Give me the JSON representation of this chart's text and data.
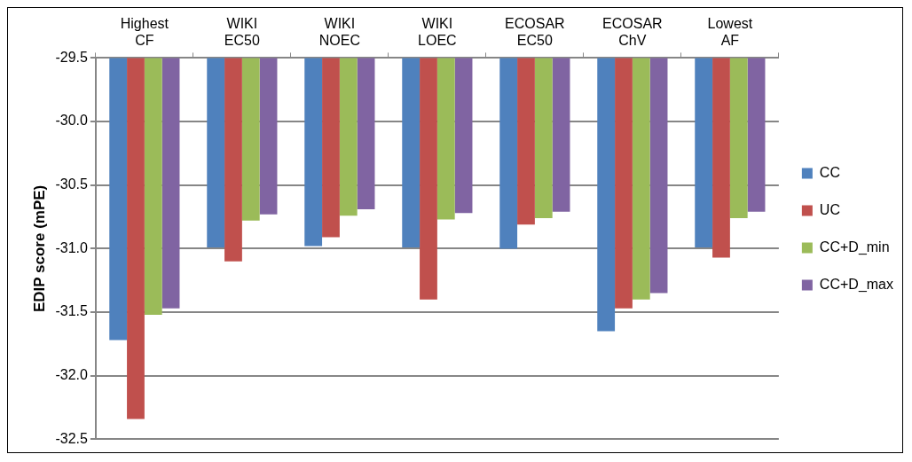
{
  "chart_data": {
    "type": "bar",
    "ylabel": "EDIP score (mPE)",
    "categories": [
      "Highest CF",
      "WIKI EC50",
      "WIKI NOEC",
      "WIKI LOEC",
      "ECOSAR EC50",
      "ECOSAR ChV",
      "Lowest AF"
    ],
    "series": [
      {
        "name": "CC",
        "color": "#4f81bd",
        "values": [
          -31.72,
          -30.99,
          -30.98,
          -30.99,
          -31.0,
          -31.65,
          -30.99
        ]
      },
      {
        "name": "UC",
        "color": "#c0504d",
        "values": [
          -32.34,
          -31.1,
          -30.91,
          -31.4,
          -30.81,
          -31.47,
          -31.07
        ]
      },
      {
        "name": "CC+D_min",
        "color": "#9bbb59",
        "values": [
          -31.52,
          -30.78,
          -30.74,
          -30.77,
          -30.76,
          -31.4,
          -30.76
        ]
      },
      {
        "name": "CC+D_max",
        "color": "#8064a2",
        "values": [
          -31.47,
          -30.73,
          -30.69,
          -30.72,
          -30.71,
          -31.35,
          -30.71
        ]
      }
    ],
    "ylim": [
      -32.5,
      -29.5
    ],
    "yticks": [
      -32.5,
      {
        "value": -32,
        "label": "-32.0"
      },
      -31.5,
      {
        "value": -31,
        "label": "-31.0"
      },
      -30.5,
      {
        "value": -30,
        "label": "-30.0"
      },
      -29.5
    ],
    "grid": "y",
    "legend": "right"
  }
}
